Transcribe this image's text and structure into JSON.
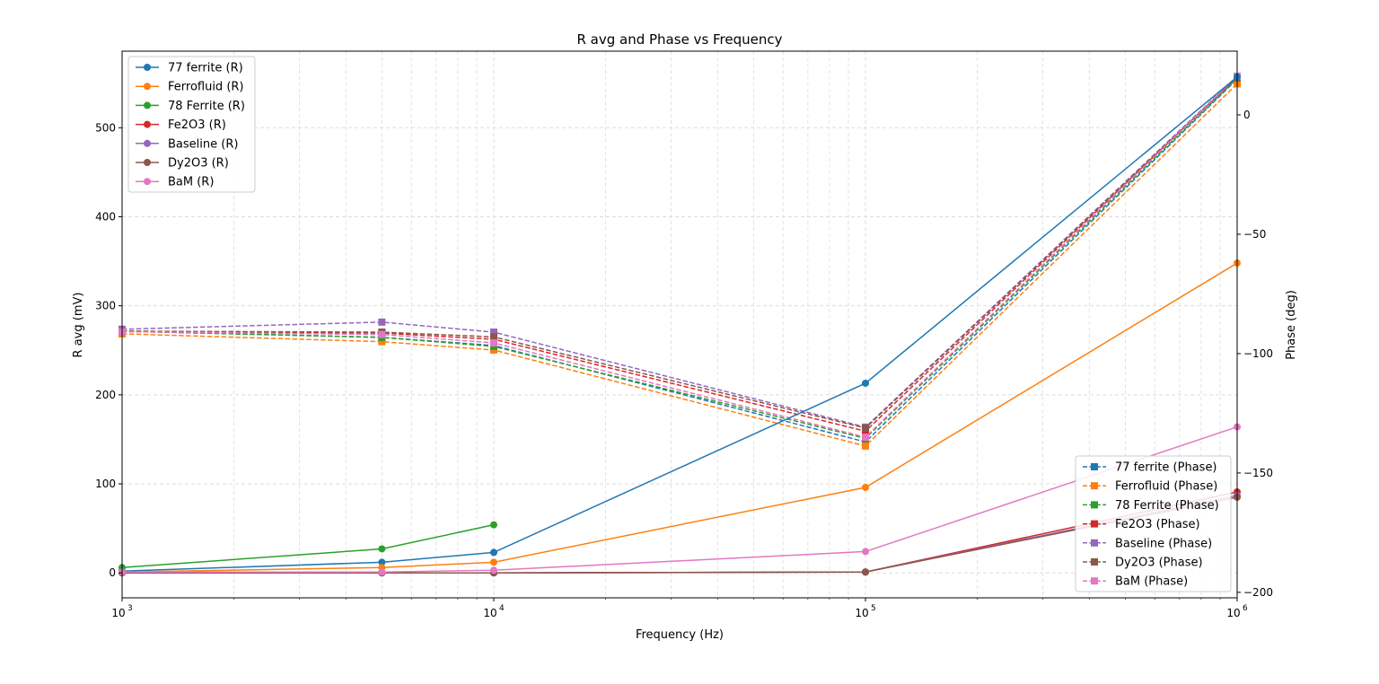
{
  "chart_data": {
    "type": "line",
    "title": "R avg and Phase vs Frequency",
    "xlabel": "Frequency (Hz)",
    "ylabel": "R avg (mV)",
    "y2label": "Phase (deg)",
    "xscale": "log",
    "xlim": [
      1000,
      1000000
    ],
    "ylim": [
      -28,
      586
    ],
    "y2lim": [
      -202.3,
      26.7
    ],
    "xticks": [
      {
        "v": 1000,
        "b": "10",
        "e": "3"
      },
      {
        "v": 10000,
        "b": "10",
        "e": "4"
      },
      {
        "v": 100000,
        "b": "10",
        "e": "5"
      },
      {
        "v": 1000000,
        "b": "10",
        "e": "6"
      }
    ],
    "yticks": [
      0,
      100,
      200,
      300,
      400,
      500
    ],
    "y2ticks": [
      0,
      -50,
      -100,
      -150,
      -200
    ],
    "grid": true,
    "x": [
      1000,
      5000,
      10000,
      100000,
      1000000
    ],
    "series_r": [
      {
        "name": "77 ferrite (R)",
        "color": "#1f77b4",
        "values": [
          2,
          12,
          23,
          213,
          557
        ]
      },
      {
        "name": "Ferrofluid (R)",
        "color": "#ff7f0e",
        "values": [
          1,
          6,
          12,
          96,
          348
        ]
      },
      {
        "name": "78 Ferrite (R)",
        "color": "#2ca02c",
        "values": [
          6,
          27,
          54,
          null,
          null
        ]
      },
      {
        "name": "Fe2O3 (R)",
        "color": "#d62728",
        "values": [
          0,
          0,
          0,
          1,
          91
        ]
      },
      {
        "name": "Baseline (R)",
        "color": "#9467bd",
        "values": [
          0,
          0,
          0,
          1,
          87
        ]
      },
      {
        "name": "Dy2O3 (R)",
        "color": "#8c564b",
        "values": [
          0,
          0,
          0,
          1,
          85
        ]
      },
      {
        "name": "BaM (R)",
        "color": "#e377c2",
        "values": [
          1,
          1,
          3,
          24,
          164
        ]
      }
    ],
    "series_phase": [
      {
        "name": "77 ferrite (Phase)",
        "color": "#1f77b4",
        "values": [
          -90.6,
          -93.2,
          -96.6,
          -137,
          15
        ]
      },
      {
        "name": "Ferrofluid (Phase)",
        "color": "#ff7f0e",
        "values": [
          -91.7,
          -95,
          -98.5,
          -138.7,
          13
        ]
      },
      {
        "name": "78 Ferrite (Phase)",
        "color": "#2ca02c",
        "values": [
          -90.6,
          -93.2,
          -97,
          -135.5,
          15.4
        ]
      },
      {
        "name": "Fe2O3 (Phase)",
        "color": "#d62728",
        "values": [
          -90.6,
          -91.4,
          -94,
          -132.5,
          15.8
        ]
      },
      {
        "name": "Baseline (Phase)",
        "color": "#9467bd",
        "values": [
          -89.8,
          -86.8,
          -91,
          -130.8,
          16.2
        ]
      },
      {
        "name": "Dy2O3 (Phase)",
        "color": "#8c564b",
        "values": [
          -90.6,
          -91,
          -93,
          -131.2,
          15.8
        ]
      },
      {
        "name": "BaM (Phase)",
        "color": "#e377c2",
        "values": [
          -90.8,
          -92,
          -95.5,
          -135,
          16.2
        ]
      }
    ]
  }
}
